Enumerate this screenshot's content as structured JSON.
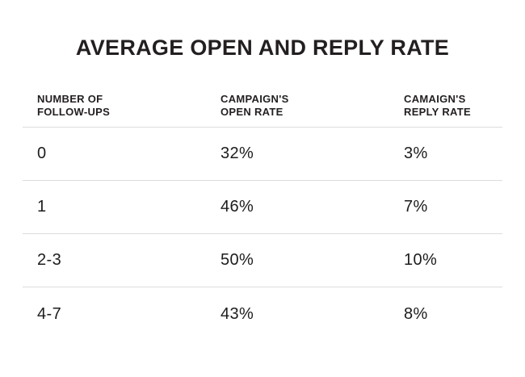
{
  "title": "AVERAGE OPEN AND REPLY RATE",
  "table": {
    "columns": [
      {
        "label_line1": "NUMBER OF",
        "label_line2": "FOLLOW-UPS"
      },
      {
        "label_line1": "CAMPAIGN'S",
        "label_line2": "OPEN RATE"
      },
      {
        "label_line1": "CAMAIGN'S",
        "label_line2": "REPLY RATE"
      }
    ],
    "rows": [
      {
        "follow_ups": "0",
        "open_rate": "32%",
        "reply_rate": "3%"
      },
      {
        "follow_ups": "1",
        "open_rate": "46%",
        "reply_rate": "7%"
      },
      {
        "follow_ups": "2-3",
        "open_rate": "50%",
        "reply_rate": "10%"
      },
      {
        "follow_ups": "4-7",
        "open_rate": "43%",
        "reply_rate": "8%"
      }
    ]
  },
  "chart_data": {
    "type": "table",
    "title": "AVERAGE OPEN AND REPLY RATE",
    "columns": [
      "NUMBER OF FOLLOW-UPS",
      "CAMPAIGN'S OPEN RATE",
      "CAMAIGN'S REPLY RATE"
    ],
    "rows": [
      [
        "0",
        "32%",
        "3%"
      ],
      [
        "1",
        "46%",
        "7%"
      ],
      [
        "2-3",
        "50%",
        "10%"
      ],
      [
        "4-7",
        "43%",
        "8%"
      ]
    ],
    "open_rate_values_pct": [
      32,
      46,
      50,
      43
    ],
    "reply_rate_values_pct": [
      3,
      7,
      10,
      8
    ],
    "legend_position": "none",
    "grid": "horizontal-dividers-only"
  },
  "colors": {
    "background": "#ffffff",
    "text": "#231f20",
    "data_text": "#1c1c1c",
    "divider": "#dcdcdc"
  }
}
